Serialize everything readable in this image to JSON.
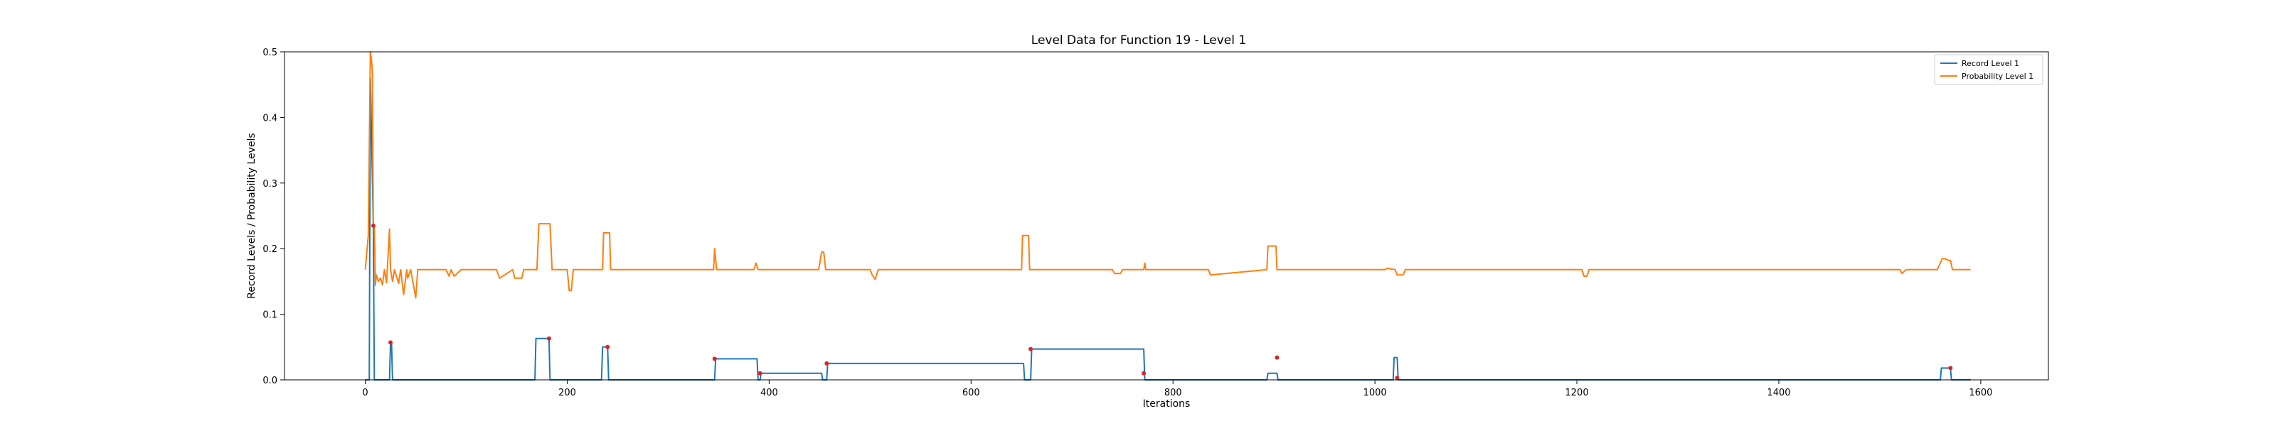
{
  "chart_data": {
    "type": "line",
    "title": "Level Data for Function 19 - Level 1",
    "xlabel": "Iterations",
    "ylabel": "Record Levels / Probability Levels",
    "xlim": [
      -80,
      1667
    ],
    "ylim": [
      0,
      0.5
    ],
    "xticks": [
      0,
      200,
      400,
      600,
      800,
      1000,
      1200,
      1400,
      1600
    ],
    "yticks": [
      0.0,
      0.1,
      0.2,
      0.3,
      0.4,
      0.5
    ],
    "xtick_labels": [
      "0",
      "200",
      "400",
      "600",
      "800",
      "1000",
      "1200",
      "1400",
      "1600"
    ],
    "ytick_labels": [
      "0.0",
      "0.1",
      "0.2",
      "0.3",
      "0.4",
      "0.5"
    ],
    "grid": false,
    "legend_position": "top-right",
    "series": [
      {
        "name": "Record Level 1",
        "color": "#1f77b4",
        "x": [
          0,
          4,
          5,
          8,
          9,
          24,
          25,
          26,
          27,
          168,
          169,
          182,
          183,
          234,
          235,
          240,
          241,
          346,
          347,
          388,
          389,
          391,
          392,
          452,
          453,
          457,
          458,
          652,
          653,
          659,
          660,
          771,
          772,
          893,
          894,
          903,
          904,
          1018,
          1019,
          1022,
          1023,
          1560,
          1561,
          1570,
          1571,
          1590
        ],
        "y": [
          0,
          0,
          0.46,
          0.235,
          0,
          0,
          0.057,
          0.057,
          0,
          0,
          0.063,
          0.063,
          0,
          0,
          0.05,
          0.05,
          0,
          0,
          0.032,
          0.032,
          0,
          0,
          0.01,
          0.01,
          0,
          0,
          0.025,
          0.025,
          0,
          0,
          0.047,
          0.047,
          0,
          0,
          0.01,
          0.01,
          0,
          0,
          0.034,
          0.034,
          0,
          0,
          0.018,
          0.018,
          0,
          0
        ]
      },
      {
        "name": "Probability Level 1",
        "color": "#ff7f0e",
        "x": [
          0,
          3,
          5,
          6,
          7,
          8,
          9,
          10,
          11,
          13,
          15,
          17,
          19,
          21,
          23,
          24,
          25,
          27,
          29,
          33,
          35,
          38,
          41,
          42,
          45,
          50,
          52,
          55,
          80,
          83,
          85,
          88,
          95,
          97,
          130,
          133,
          146,
          148,
          155,
          157,
          170,
          172,
          183,
          185,
          200,
          202,
          204,
          206,
          235,
          236,
          242,
          243,
          258,
          260,
          345,
          346,
          348,
          385,
          387,
          389,
          391,
          420,
          422,
          447,
          449,
          452,
          454,
          456,
          500,
          502,
          505,
          508,
          650,
          651,
          657,
          658,
          740,
          742,
          748,
          750,
          770,
          771,
          772,
          773,
          835,
          837,
          893,
          894,
          902,
          903,
          1010,
          1012,
          1020,
          1022,
          1028,
          1030,
          1205,
          1207,
          1210,
          1212,
          1400,
          1402,
          1520,
          1522,
          1526,
          1528,
          1555,
          1557,
          1562,
          1564,
          1568,
          1570,
          1572,
          1590
        ],
        "y": [
          0.168,
          0.22,
          0.5,
          0.49,
          0.47,
          0.235,
          0.235,
          0.144,
          0.16,
          0.15,
          0.155,
          0.145,
          0.168,
          0.148,
          0.2,
          0.23,
          0.168,
          0.15,
          0.168,
          0.147,
          0.168,
          0.13,
          0.168,
          0.155,
          0.168,
          0.125,
          0.168,
          0.168,
          0.168,
          0.158,
          0.168,
          0.158,
          0.168,
          0.168,
          0.168,
          0.155,
          0.168,
          0.155,
          0.155,
          0.168,
          0.168,
          0.238,
          0.238,
          0.168,
          0.168,
          0.136,
          0.136,
          0.168,
          0.168,
          0.224,
          0.224,
          0.168,
          0.168,
          0.168,
          0.168,
          0.2,
          0.168,
          0.168,
          0.178,
          0.168,
          0.168,
          0.168,
          0.168,
          0.168,
          0.168,
          0.195,
          0.195,
          0.168,
          0.168,
          0.16,
          0.153,
          0.168,
          0.168,
          0.22,
          0.22,
          0.168,
          0.168,
          0.162,
          0.162,
          0.168,
          0.168,
          0.168,
          0.178,
          0.168,
          0.168,
          0.16,
          0.168,
          0.204,
          0.204,
          0.168,
          0.168,
          0.17,
          0.168,
          0.16,
          0.16,
          0.168,
          0.168,
          0.158,
          0.158,
          0.168,
          0.168,
          0.168,
          0.168,
          0.162,
          0.168,
          0.168,
          0.168,
          0.168,
          0.185,
          0.185,
          0.182,
          0.182,
          0.168,
          0.168
        ]
      }
    ],
    "markers": {
      "color": "#d62728",
      "x": [
        8,
        25,
        182,
        240,
        346,
        391,
        457,
        659,
        771,
        903,
        1022,
        1570
      ],
      "y": [
        0.235,
        0.057,
        0.063,
        0.05,
        0.032,
        0.01,
        0.025,
        0.047,
        0.01,
        0.034,
        0.003,
        0.018
      ]
    }
  }
}
